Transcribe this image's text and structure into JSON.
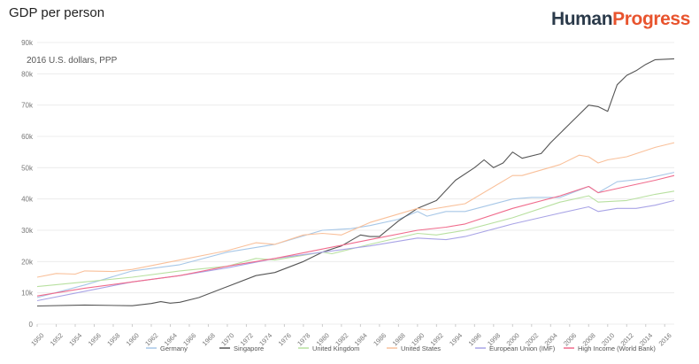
{
  "header": {
    "title": "GDP per person",
    "brand_left": "Human",
    "brand_right": "Progress"
  },
  "colors": {
    "brand_dark": "#2b3a4a",
    "brand_orange": "#e8542e",
    "grid": "#ececec",
    "axis_text": "#777777"
  },
  "chart_data": {
    "type": "line",
    "title": "GDP per person",
    "unit_label": "2016 U.S. dollars, PPP",
    "xlabel": "",
    "ylabel": "2016 U.S. dollars, PPP",
    "xlim": [
      1950,
      2017
    ],
    "ylim": [
      0,
      90000
    ],
    "yticks": [
      0,
      10000,
      20000,
      30000,
      40000,
      50000,
      60000,
      70000,
      80000,
      90000
    ],
    "ytick_labels": [
      "0",
      "10k",
      "20k",
      "30k",
      "40k",
      "50k",
      "60k",
      "70k",
      "80k",
      "90k"
    ],
    "xticks": [
      1950,
      1952,
      1954,
      1956,
      1958,
      1960,
      1962,
      1964,
      1966,
      1968,
      1970,
      1972,
      1974,
      1976,
      1978,
      1980,
      1982,
      1984,
      1986,
      1988,
      1990,
      1992,
      1994,
      1996,
      1998,
      2000,
      2002,
      2004,
      2006,
      2008,
      2010,
      2012,
      2014,
      2016
    ],
    "grid": true,
    "legend_position": "bottom",
    "series": [
      {
        "name": "Germany",
        "color": "#a7c7e7",
        "x": [
          1950,
          1955,
          1960,
          1965,
          1970,
          1975,
          1980,
          1983,
          1985,
          1988,
          1990,
          1991,
          1993,
          1995,
          2000,
          2002,
          2005,
          2008,
          2009,
          2011,
          2014,
          2017
        ],
        "y": [
          8500,
          12500,
          17000,
          19000,
          23000,
          25500,
          30000,
          30500,
          31500,
          33500,
          36000,
          34500,
          36000,
          36000,
          40000,
          40500,
          40500,
          44000,
          42000,
          45500,
          46500,
          48500
        ]
      },
      {
        "name": "Singapore",
        "color": "#555555",
        "x": [
          1950,
          1955,
          1960,
          1962,
          1963,
          1964,
          1965,
          1967,
          1970,
          1973,
          1975,
          1978,
          1980,
          1982,
          1984,
          1985,
          1986,
          1988,
          1990,
          1992,
          1994,
          1996,
          1997,
          1998,
          1999,
          2000,
          2001,
          2003,
          2004,
          2006,
          2008,
          2009,
          2010,
          2011,
          2012,
          2013,
          2014,
          2015,
          2017
        ],
        "y": [
          5800,
          6100,
          5900,
          6600,
          7200,
          6700,
          7000,
          8500,
          12000,
          15500,
          16500,
          20000,
          23000,
          25000,
          28500,
          28000,
          28000,
          33000,
          37000,
          39500,
          46000,
          50000,
          52500,
          50000,
          51500,
          55000,
          53000,
          54500,
          58000,
          64000,
          70000,
          69500,
          68000,
          76500,
          79500,
          81000,
          83000,
          84500,
          84800
        ]
      },
      {
        "name": "United Kingdom",
        "color": "#b8e0a0",
        "x": [
          1950,
          1955,
          1960,
          1965,
          1970,
          1973,
          1975,
          1980,
          1981,
          1985,
          1990,
          1992,
          1995,
          2000,
          2005,
          2008,
          2009,
          2012,
          2015,
          2017
        ],
        "y": [
          12000,
          13500,
          15000,
          17000,
          18500,
          21000,
          20500,
          23000,
          22500,
          25500,
          29000,
          28500,
          30000,
          34000,
          39000,
          41000,
          39000,
          39500,
          41500,
          42500
        ]
      },
      {
        "name": "United States",
        "color": "#f9c09a",
        "x": [
          1950,
          1952,
          1954,
          1955,
          1958,
          1960,
          1965,
          1970,
          1973,
          1975,
          1978,
          1980,
          1982,
          1985,
          1990,
          1991,
          1995,
          2000,
          2001,
          2005,
          2007,
          2008,
          2009,
          2010,
          2012,
          2015,
          2017
        ],
        "y": [
          15000,
          16200,
          16000,
          17000,
          16800,
          17500,
          20500,
          23500,
          26000,
          25500,
          28500,
          29000,
          28500,
          32500,
          37000,
          36500,
          38500,
          47500,
          47500,
          51000,
          54000,
          53500,
          51500,
          52500,
          53500,
          56500,
          58000
        ]
      },
      {
        "name": "European Union (IMF)",
        "color": "#a9a4e6",
        "x": [
          1950,
          1955,
          1960,
          1965,
          1970,
          1975,
          1980,
          1985,
          1990,
          1993,
          1995,
          2000,
          2005,
          2008,
          2009,
          2011,
          2013,
          2015,
          2017
        ],
        "y": [
          7500,
          10500,
          13500,
          15500,
          18000,
          21000,
          23000,
          25000,
          27500,
          27000,
          28000,
          32000,
          35500,
          37500,
          36000,
          37000,
          37000,
          38000,
          39500
        ]
      },
      {
        "name": "High Income (World Bank)",
        "color": "#f06b8c",
        "x": [
          1950,
          1955,
          1960,
          1965,
          1970,
          1975,
          1980,
          1985,
          1990,
          1993,
          1995,
          2000,
          2005,
          2008,
          2009,
          2012,
          2015,
          2017
        ],
        "y": [
          9000,
          11500,
          13500,
          15500,
          18500,
          21000,
          24000,
          27000,
          30000,
          31000,
          32000,
          37000,
          41000,
          44000,
          42000,
          44000,
          46000,
          47500
        ]
      }
    ]
  }
}
